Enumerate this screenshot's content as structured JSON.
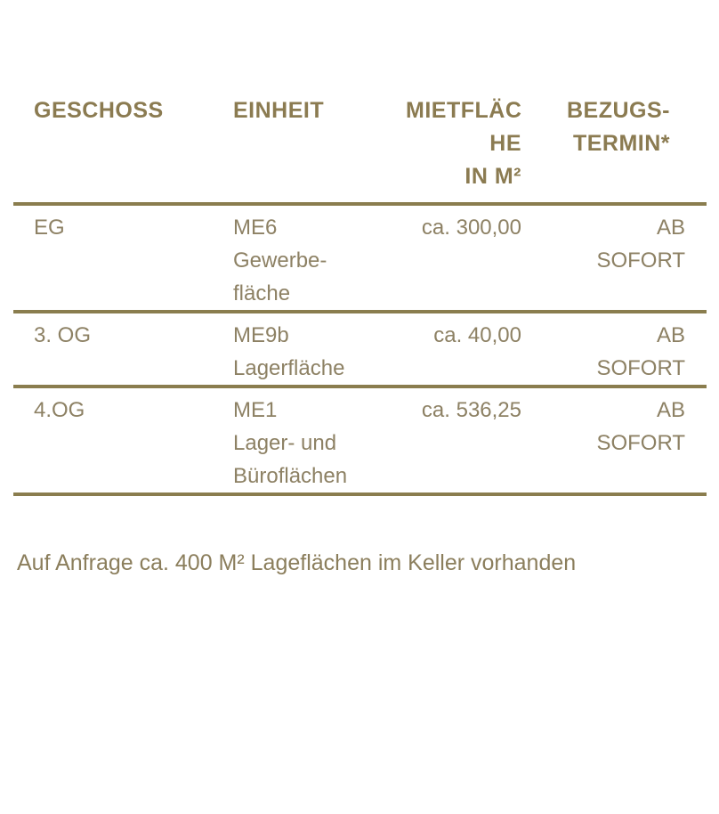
{
  "colors": {
    "header_text": "#8b7b51",
    "body_text": "#8d8164",
    "rule": "#8a7d4e",
    "footer_text": "#8b7e5c",
    "background": "#ffffff"
  },
  "table": {
    "headers": {
      "geschoss": {
        "lines": [
          "GESCHOSS"
        ]
      },
      "einheit": {
        "lines": [
          "EINHEIT"
        ]
      },
      "mietflaeche": {
        "lines": [
          "MIETFLÄC",
          "HE",
          "IN M²"
        ]
      },
      "bezugstermin": {
        "lines": [
          "BEZUGS-",
          "TERMIN*"
        ]
      }
    },
    "rows": [
      {
        "geschoss": {
          "lines": [
            "EG"
          ]
        },
        "einheit": {
          "lines": [
            "ME6",
            "Gewerbe-",
            "fläche"
          ]
        },
        "mietflaeche": {
          "lines": [
            "ca. 300,00"
          ]
        },
        "bezugstermin": {
          "lines": [
            "AB",
            "SOFORT"
          ]
        }
      },
      {
        "geschoss": {
          "lines": [
            "3. OG"
          ]
        },
        "einheit": {
          "lines": [
            "ME9b",
            "Lagerfläche"
          ]
        },
        "mietflaeche": {
          "lines": [
            "ca. 40,00"
          ]
        },
        "bezugstermin": {
          "lines": [
            "AB",
            "SOFORT"
          ]
        }
      },
      {
        "geschoss": {
          "lines": [
            "4.OG"
          ]
        },
        "einheit": {
          "lines": [
            "ME1",
            "Lager- und",
            "Büroflächen"
          ]
        },
        "mietflaeche": {
          "lines": [
            "ca. 536,25"
          ]
        },
        "bezugstermin": {
          "lines": [
            "AB",
            "SOFORT"
          ]
        }
      }
    ]
  },
  "footer": {
    "note": "Auf Anfrage ca. 400 M² Lageflächen im Keller vorhanden"
  }
}
